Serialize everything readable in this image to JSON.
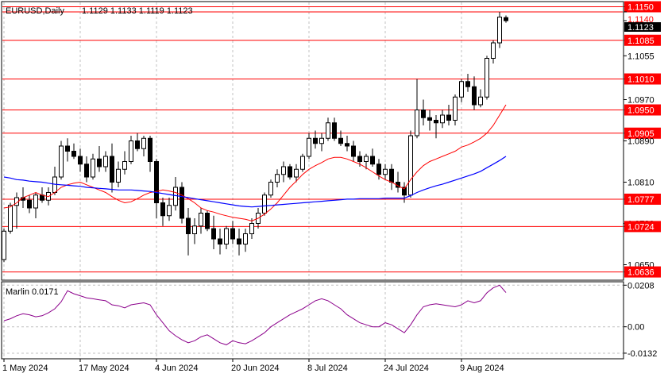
{
  "main_panel": {
    "symbol_label": "EURUSD,Daily",
    "ohlc_label": "1.1129 1.1133 1.1119 1.1123",
    "y_ticks": [
      "1.1150",
      "1.1140",
      "1.1123",
      "1.1085",
      "1.1055",
      "1.1010",
      "1.0970",
      "1.0950",
      "1.0905",
      "1.0890",
      "1.0810",
      "1.0777",
      "1.0730",
      "1.0724",
      "1.0650",
      "1.0636"
    ],
    "colors": {
      "candle": "#000000",
      "level_line": "#ff0000",
      "fast_ma": "#ff0000",
      "slow_ma": "#0000ff",
      "oscillator": "#8b008b",
      "grid": "#c0c0c0"
    }
  },
  "oscillator_panel": {
    "label": "Marlin 0.0171",
    "y_ticks": [
      "0.0208",
      "0.00",
      "-0.0132"
    ]
  },
  "x_axis": {
    "tick_labels": [
      "1 May 2024",
      "17 May 2024",
      "4 Jun 2024",
      "20 Jun 2024",
      "8 Jul 2024",
      "24 Jul 2024",
      "9 Aug 2024"
    ]
  },
  "chart_data": [
    {
      "type": "candlestick",
      "title": "EURUSD,Daily",
      "grid": true,
      "ylim": [
        1.062,
        1.116
      ],
      "horizontal_levels": [
        1.115,
        1.114,
        1.1085,
        1.101,
        1.095,
        1.0905,
        1.0777,
        1.0724,
        1.0636
      ],
      "x_tick_labels": [
        "1 May 2024",
        "17 May 2024",
        "4 Jun 2024",
        "20 Jun 2024",
        "8 Jul 2024",
        "24 Jul 2024",
        "9 Aug 2024"
      ],
      "candles": [
        [
          1.066,
          1.072,
          1.0655,
          1.0715
        ],
        [
          1.0715,
          1.077,
          1.071,
          1.0765
        ],
        [
          1.0765,
          1.079,
          1.072,
          1.078
        ],
        [
          1.078,
          1.08,
          1.076,
          1.0775
        ],
        [
          1.0775,
          1.0785,
          1.075,
          1.076
        ],
        [
          1.076,
          1.079,
          1.074,
          1.0785
        ],
        [
          1.0785,
          1.08,
          1.077,
          1.0775
        ],
        [
          1.0775,
          1.08,
          1.0765,
          1.079
        ],
        [
          1.079,
          1.084,
          1.0785,
          1.082
        ],
        [
          1.082,
          1.089,
          1.0815,
          1.088
        ],
        [
          1.088,
          1.0895,
          1.085,
          1.087
        ],
        [
          1.087,
          1.0885,
          1.0855,
          1.086
        ],
        [
          1.086,
          1.0875,
          1.083,
          1.0845
        ],
        [
          1.0845,
          1.086,
          1.081,
          1.082
        ],
        [
          1.082,
          1.0865,
          1.0815,
          1.0855
        ],
        [
          1.0855,
          1.088,
          1.083,
          1.084
        ],
        [
          1.084,
          1.087,
          1.083,
          1.086
        ],
        [
          1.086,
          1.0885,
          1.079,
          1.081
        ],
        [
          1.081,
          1.085,
          1.08,
          1.0835
        ],
        [
          1.0835,
          1.087,
          1.0825,
          1.085
        ],
        [
          1.085,
          1.09,
          1.0845,
          1.089
        ],
        [
          1.089,
          1.0905,
          1.087,
          1.0875
        ],
        [
          1.0875,
          1.09,
          1.086,
          1.0895
        ],
        [
          1.0895,
          1.09,
          1.083,
          1.085
        ],
        [
          1.085,
          1.0855,
          1.074,
          1.077
        ],
        [
          1.077,
          1.078,
          1.0725,
          1.0745
        ],
        [
          1.0745,
          1.078,
          1.0735,
          1.0765
        ],
        [
          1.0765,
          1.082,
          1.0755,
          1.08
        ],
        [
          1.08,
          1.081,
          1.073,
          1.074
        ],
        [
          1.074,
          1.076,
          1.0668,
          1.071
        ],
        [
          1.071,
          1.074,
          1.069,
          1.0725
        ],
        [
          1.0725,
          1.076,
          1.071,
          1.075
        ],
        [
          1.075,
          1.0755,
          1.0715,
          1.072
        ],
        [
          1.072,
          1.0745,
          1.068,
          1.07
        ],
        [
          1.07,
          1.072,
          1.067,
          1.069
        ],
        [
          1.069,
          1.0725,
          1.068,
          1.072
        ],
        [
          1.072,
          1.0735,
          1.069,
          1.07
        ],
        [
          1.07,
          1.072,
          1.0668,
          1.069
        ],
        [
          1.069,
          1.072,
          1.0675,
          1.071
        ],
        [
          1.071,
          1.074,
          1.07,
          1.073
        ],
        [
          1.073,
          1.076,
          1.072,
          1.075
        ],
        [
          1.075,
          1.079,
          1.0745,
          1.0785
        ],
        [
          1.0785,
          1.0815,
          1.078,
          1.081
        ],
        [
          1.081,
          1.0835,
          1.08,
          1.0825
        ],
        [
          1.0825,
          1.085,
          1.081,
          1.084
        ],
        [
          1.084,
          1.0845,
          1.0815,
          1.082
        ],
        [
          1.082,
          1.0845,
          1.081,
          1.0835
        ],
        [
          1.0835,
          1.0865,
          1.083,
          1.086
        ],
        [
          1.086,
          1.0905,
          1.0855,
          1.0895
        ],
        [
          1.0895,
          1.091,
          1.0875,
          1.0885
        ],
        [
          1.0885,
          1.0905,
          1.087,
          1.0895
        ],
        [
          1.0895,
          1.0935,
          1.089,
          1.0925
        ],
        [
          1.0925,
          1.0935,
          1.089,
          1.0895
        ],
        [
          1.0895,
          1.091,
          1.088,
          1.0885
        ],
        [
          1.0885,
          1.09,
          1.087,
          1.088
        ],
        [
          1.088,
          1.089,
          1.085,
          1.086
        ],
        [
          1.086,
          1.087,
          1.084,
          1.085
        ],
        [
          1.085,
          1.0865,
          1.0835,
          1.086
        ],
        [
          1.086,
          1.0875,
          1.084,
          1.0845
        ],
        [
          1.0845,
          1.0855,
          1.0815,
          1.0825
        ],
        [
          1.0825,
          1.0845,
          1.0815,
          1.0835
        ],
        [
          1.0835,
          1.0845,
          1.0795,
          1.081
        ],
        [
          1.081,
          1.083,
          1.079,
          1.08
        ],
        [
          1.08,
          1.081,
          1.077,
          1.0785
        ],
        [
          1.0785,
          1.091,
          1.078,
          1.09
        ],
        [
          1.09,
          1.101,
          1.0895,
          1.095
        ],
        [
          1.095,
          1.097,
          1.092,
          1.0935
        ],
        [
          1.0935,
          1.095,
          1.091,
          1.093
        ],
        [
          1.093,
          1.094,
          1.0895,
          1.0925
        ],
        [
          1.0925,
          1.095,
          1.0915,
          1.094
        ],
        [
          1.094,
          1.096,
          1.092,
          1.093
        ],
        [
          1.093,
          1.098,
          1.092,
          1.0975
        ],
        [
          1.0975,
          1.101,
          1.0965,
          1.1005
        ],
        [
          1.1005,
          1.102,
          1.0985,
          1.0995
        ],
        [
          1.0995,
          1.1015,
          1.095,
          1.096
        ],
        [
          1.096,
          1.099,
          1.0955,
          1.0975
        ],
        [
          1.0975,
          1.1055,
          1.097,
          1.105
        ],
        [
          1.105,
          1.1085,
          1.104,
          1.108
        ],
        [
          1.108,
          1.114,
          1.107,
          1.113
        ],
        [
          1.1129,
          1.1133,
          1.1119,
          1.1123
        ]
      ],
      "series": [
        {
          "values": [
            1.076,
            1.0762,
            1.077,
            1.078,
            1.0785,
            1.079,
            1.0785,
            1.0782,
            1.079,
            1.08,
            1.0805,
            1.0808,
            1.081,
            1.0805,
            1.08,
            1.0795,
            1.079,
            1.0782,
            1.0775,
            1.077,
            1.0772,
            1.0778,
            1.0785,
            1.079,
            1.0792,
            1.0795,
            1.0793,
            1.079,
            1.0785,
            1.0778,
            1.077,
            1.076,
            1.0755,
            1.0752,
            1.0748,
            1.0745,
            1.0742,
            1.074,
            1.0738,
            1.0735,
            1.074,
            1.0748,
            1.0758,
            1.077,
            1.0785,
            1.08,
            1.0812,
            1.0825,
            1.0835,
            1.0842,
            1.0848,
            1.0855,
            1.0858,
            1.0858,
            1.0855,
            1.085,
            1.0845,
            1.0838,
            1.083,
            1.0822,
            1.0815,
            1.081,
            1.0803,
            1.0797,
            1.0815,
            1.083,
            1.0842,
            1.085,
            1.0855,
            1.086,
            1.0865,
            1.087,
            1.0878,
            1.0882,
            1.0888,
            1.0895,
            1.0905,
            1.092,
            1.094,
            1.096
          ]
        },
        {
          "values": [
            1.082,
            1.0818,
            1.0815,
            1.0814,
            1.0812,
            1.0811,
            1.081,
            1.0808,
            1.0806,
            1.0805,
            1.0804,
            1.0803,
            1.0802,
            1.08,
            1.0799,
            1.0798,
            1.0797,
            1.0796,
            1.0795,
            1.0795,
            1.0795,
            1.0794,
            1.0793,
            1.0792,
            1.079,
            1.0788,
            1.0786,
            1.0784,
            1.0782,
            1.078,
            1.0778,
            1.0776,
            1.0774,
            1.0772,
            1.077,
            1.0768,
            1.0766,
            1.0764,
            1.0763,
            1.0762,
            1.0763,
            1.0764,
            1.0765,
            1.0766,
            1.0767,
            1.0768,
            1.0769,
            1.077,
            1.0771,
            1.0772,
            1.0773,
            1.0774,
            1.0775,
            1.0776,
            1.0777,
            1.0777,
            1.0778,
            1.0778,
            1.0778,
            1.0778,
            1.0779,
            1.0779,
            1.0779,
            1.0779,
            1.0784,
            1.079,
            1.0795,
            1.0799,
            1.0803,
            1.0806,
            1.081,
            1.0814,
            1.0818,
            1.0822,
            1.0826,
            1.0831,
            1.0838,
            1.0845,
            1.0852,
            1.086
          ]
        }
      ]
    },
    {
      "type": "line",
      "title": "Marlin 0.0171",
      "ylim": [
        -0.016,
        0.0225
      ],
      "y_ticks": [
        0.0208,
        0.0,
        -0.0132
      ],
      "series": [
        {
          "values": [
            0.003,
            0.004,
            0.0055,
            0.0065,
            0.006,
            0.005,
            0.0055,
            0.007,
            0.009,
            0.0125,
            0.018,
            0.0165,
            0.0155,
            0.0145,
            0.014,
            0.0135,
            0.013,
            0.011,
            0.0105,
            0.0095,
            0.011,
            0.0115,
            0.012,
            0.011,
            0.006,
            0.002,
            -0.002,
            -0.0045,
            -0.0065,
            -0.008,
            -0.007,
            -0.005,
            -0.004,
            -0.006,
            -0.008,
            -0.009,
            -0.007,
            -0.008,
            -0.0085,
            -0.007,
            -0.005,
            -0.003,
            0.0,
            0.002,
            0.004,
            0.006,
            0.0075,
            0.009,
            0.011,
            0.013,
            0.014,
            0.013,
            0.011,
            0.009,
            0.006,
            0.004,
            0.002,
            0.001,
            0.0,
            0.0,
            0.002,
            0.001,
            -0.001,
            -0.003,
            0.001,
            0.006,
            0.01,
            0.011,
            0.0115,
            0.011,
            0.0105,
            0.01,
            0.011,
            0.013,
            0.012,
            0.013,
            0.017,
            0.0195,
            0.0208,
            0.0171
          ]
        }
      ]
    }
  ]
}
